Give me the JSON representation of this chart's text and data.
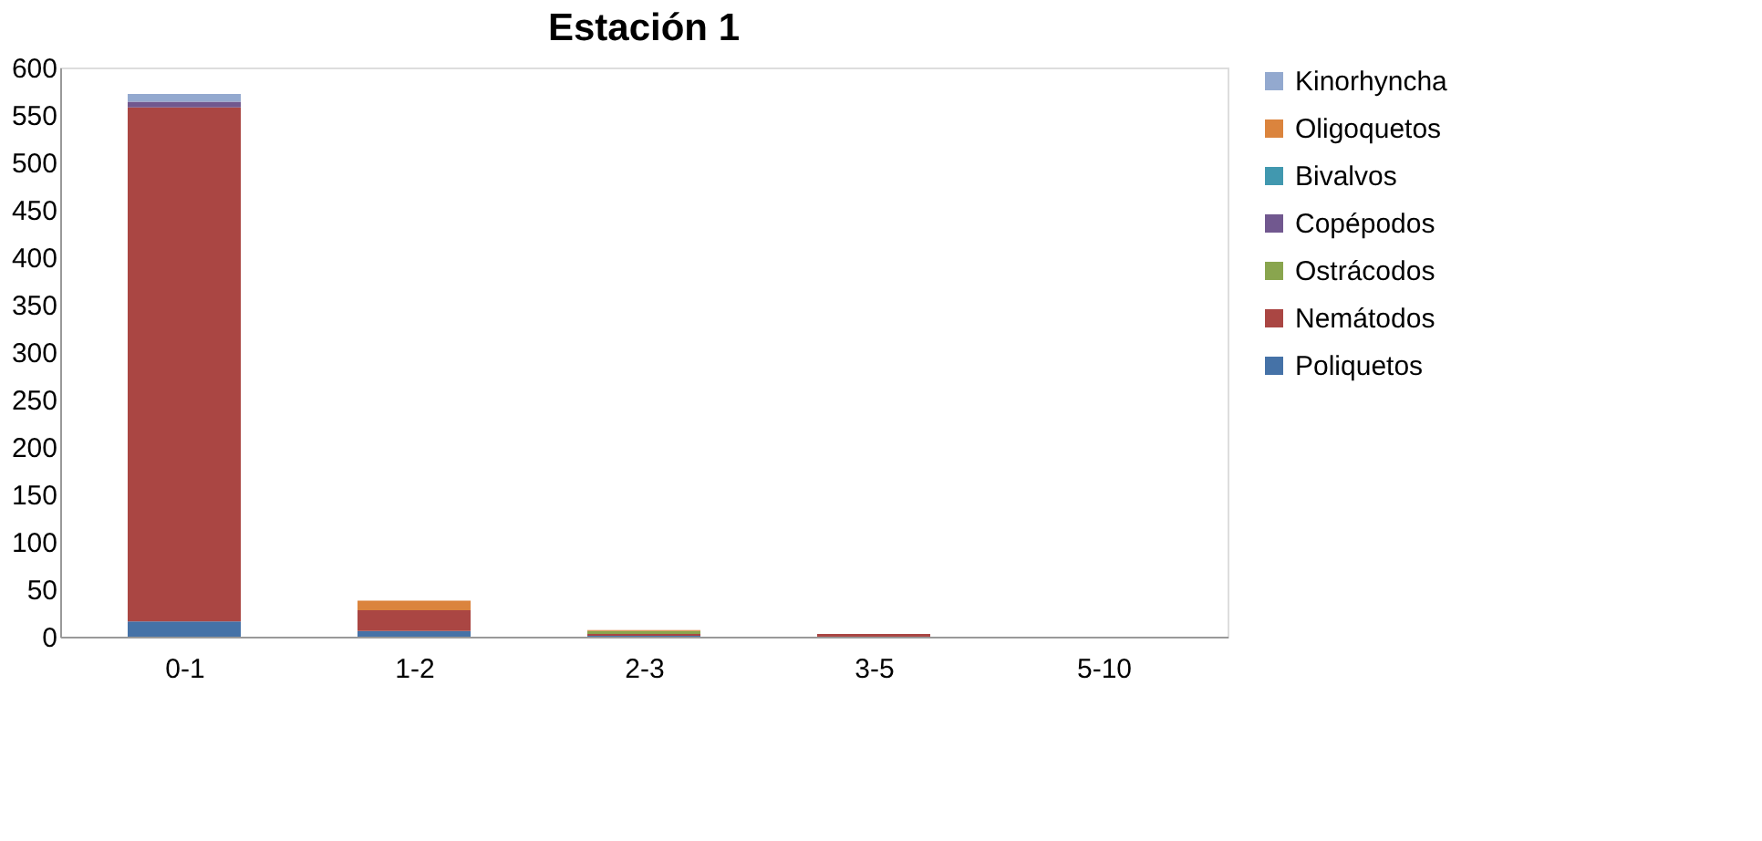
{
  "chart_data": {
    "type": "bar",
    "title": "Estación 1",
    "stacked": true,
    "categories": [
      "0-1",
      "1-2",
      "2-3",
      "3-5",
      "5-10"
    ],
    "series": [
      {
        "name": "Poliquetos",
        "color": "#4572a7",
        "values": [
          16,
          6,
          1,
          0,
          0
        ]
      },
      {
        "name": "Nemátodos",
        "color": "#aa4643",
        "values": [
          542,
          22,
          2,
          3,
          0
        ]
      },
      {
        "name": "Ostrácodos",
        "color": "#89a54e",
        "values": [
          0,
          0,
          3,
          0,
          0
        ]
      },
      {
        "name": "Copépodos",
        "color": "#71588f",
        "values": [
          6,
          0,
          0,
          0,
          0
        ]
      },
      {
        "name": "Bivalvos",
        "color": "#4198af",
        "values": [
          0,
          0,
          0,
          0,
          0
        ]
      },
      {
        "name": "Oligoquetos",
        "color": "#db843d",
        "values": [
          0,
          10,
          1,
          0,
          0
        ]
      },
      {
        "name": "Kinorhyncha",
        "color": "#93a9cf",
        "values": [
          8,
          0,
          0,
          0,
          0
        ]
      }
    ],
    "ylim": [
      0,
      600
    ],
    "yticks": [
      0,
      50,
      100,
      150,
      200,
      250,
      300,
      350,
      400,
      450,
      500,
      550,
      600
    ],
    "grid": false,
    "legend": "right"
  }
}
